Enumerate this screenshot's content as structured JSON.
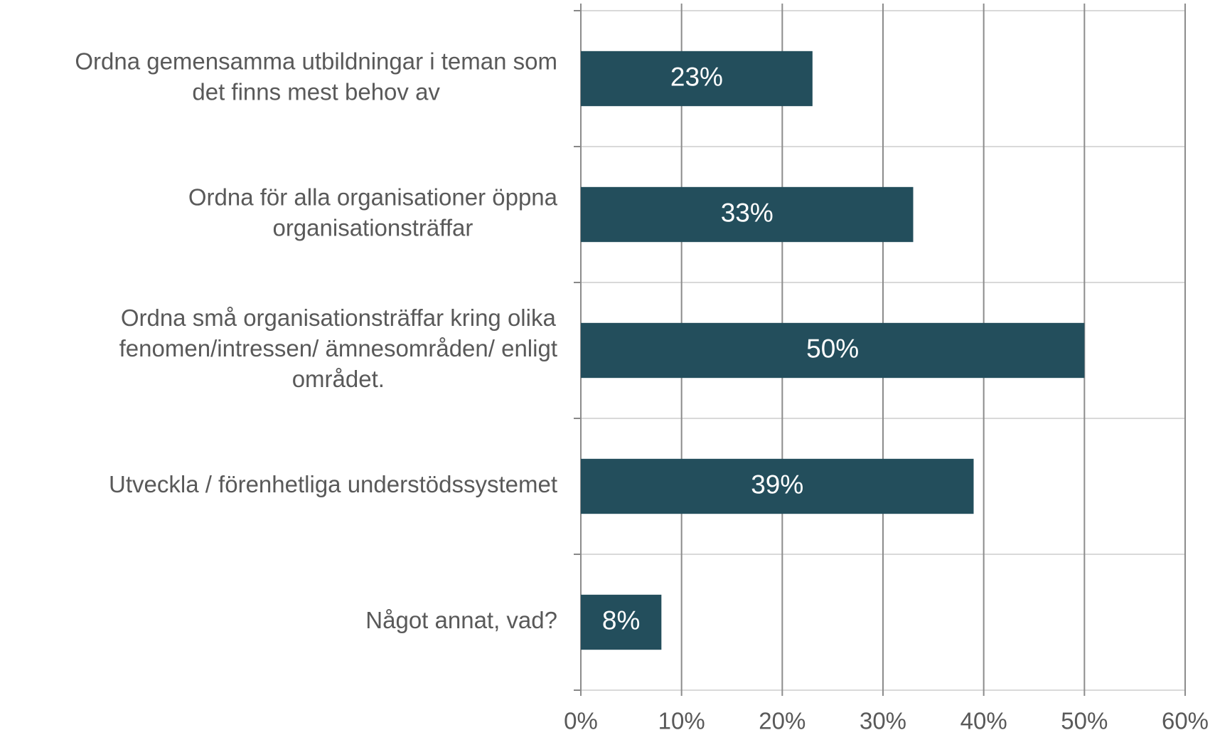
{
  "chart_data": {
    "type": "bar",
    "orientation": "horizontal",
    "categories": [
      [
        "Ordna gemensamma utbildningar i teman som",
        "det finns mest behov av"
      ],
      [
        "Ordna för alla organisationer öppna",
        "organisationsträffar"
      ],
      [
        "Ordna små organisationsträffar kring olika",
        "fenomen/intressen/ ämnesområden/ enligt",
        "området."
      ],
      [
        "Utveckla / förenhetliga understödssystemet"
      ],
      [
        "Något annat, vad?"
      ]
    ],
    "values": [
      23,
      33,
      50,
      39,
      8
    ],
    "value_labels": [
      "23%",
      "33%",
      "50%",
      "39%",
      "8%"
    ],
    "color": "#234e5c",
    "xlim": [
      0,
      60
    ],
    "xticks": [
      {
        "value": 0,
        "label": "0%"
      },
      {
        "value": 10,
        "label": "10%"
      },
      {
        "value": 20,
        "label": "20%"
      },
      {
        "value": 30,
        "label": "30%"
      },
      {
        "value": 40,
        "label": "40%"
      },
      {
        "value": 50,
        "label": "50%"
      },
      {
        "value": 60,
        "label": "60%"
      }
    ],
    "grid": true
  }
}
